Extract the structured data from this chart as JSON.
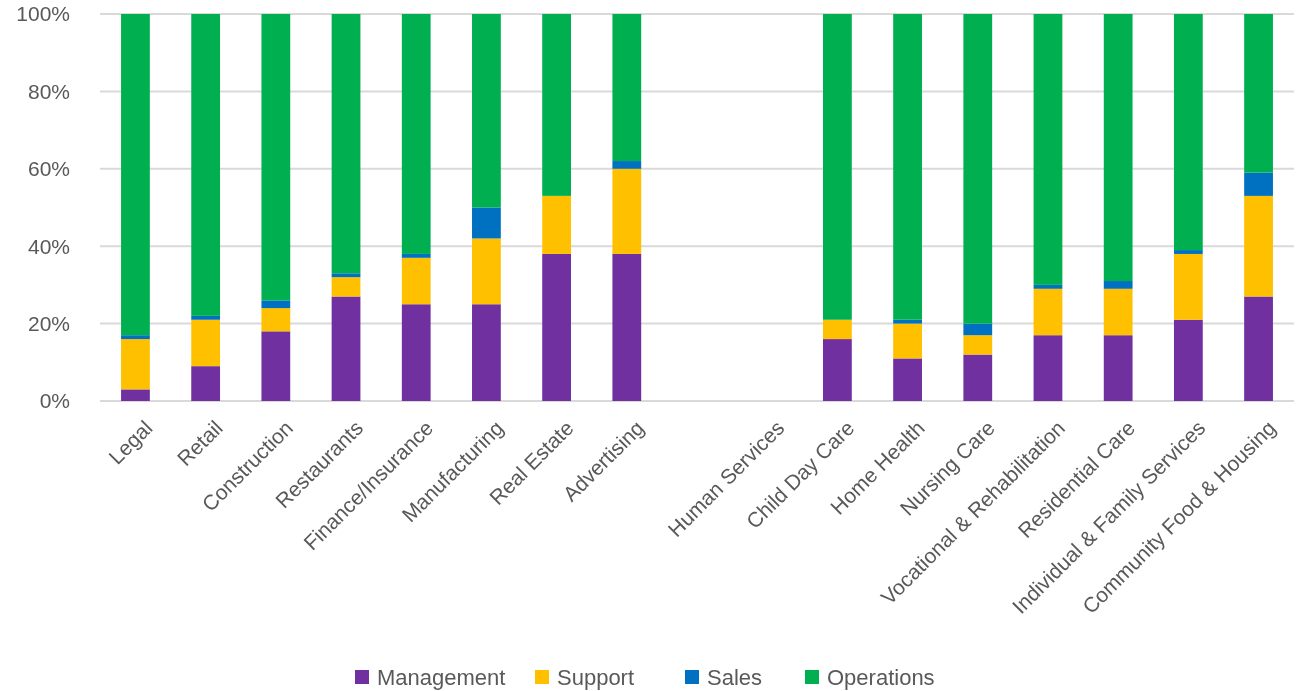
{
  "chart_data": {
    "type": "bar",
    "stacked": true,
    "categories": [
      "Legal",
      "Retail",
      "Construction",
      "Restaurants",
      "Finance/Insurance",
      "Manufacturing",
      "Real Estate",
      "Advertising",
      null,
      "Human Services",
      "Child Day Care",
      "Home Health",
      "Nursing Care",
      "Vocational & Rehabilitation",
      "Residential Care",
      "Individual &  Family Services",
      "Community Food & Housing"
    ],
    "series": [
      {
        "name": "Management",
        "color": "#7030a0",
        "values": [
          3,
          9,
          18,
          27,
          25,
          25,
          38,
          38,
          null,
          null,
          16,
          11,
          12,
          17,
          17,
          21,
          27
        ]
      },
      {
        "name": "Support",
        "color": "#ffc000",
        "values": [
          13,
          12,
          6,
          5,
          12,
          17,
          15,
          22,
          null,
          null,
          5,
          9,
          5,
          12,
          12,
          17,
          26
        ]
      },
      {
        "name": "Sales",
        "color": "#0070c0",
        "values": [
          1,
          1,
          2,
          1,
          1,
          8,
          0,
          2,
          null,
          null,
          0,
          1,
          3,
          1,
          2,
          1,
          6
        ]
      },
      {
        "name": "Operations",
        "color": "#00b050",
        "values": [
          83,
          78,
          74,
          67,
          62,
          50,
          47,
          38,
          null,
          null,
          79,
          79,
          80,
          70,
          69,
          61,
          41
        ]
      }
    ],
    "ylim": [
      0,
      100
    ],
    "yticks": [
      {
        "value": 0,
        "label": "0%"
      },
      {
        "value": 20,
        "label": "20%"
      },
      {
        "value": 40,
        "label": "40%"
      },
      {
        "value": 60,
        "label": "60%"
      },
      {
        "value": 80,
        "label": "80%"
      },
      {
        "value": 100,
        "label": "100%"
      }
    ],
    "grid": "y",
    "legend": "bottom"
  }
}
